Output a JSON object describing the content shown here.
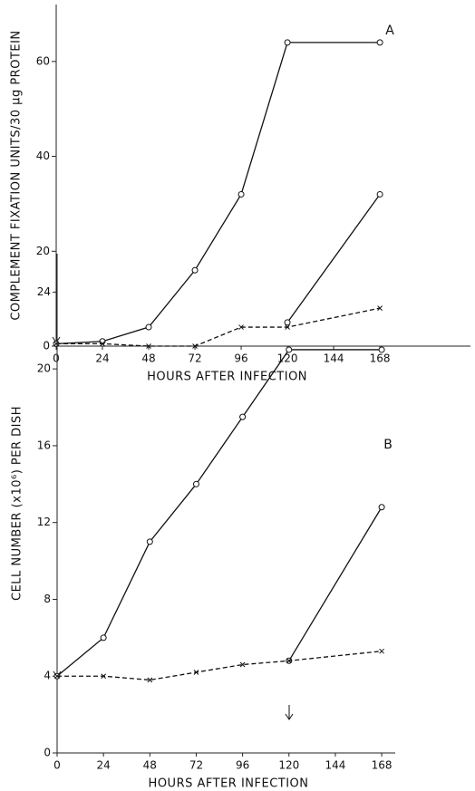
{
  "chart_data": [
    {
      "type": "line",
      "title": "A",
      "xlabel": "HOURS AFTER INFECTION",
      "ylabel": "COMPLEMENT FIXATION UNITS/30 μg PROTEIN",
      "x": [
        0,
        24,
        48,
        72,
        96,
        120,
        168
      ],
      "series": [
        {
          "color": "#111111",
          "marker": "o",
          "linestyle": "solid",
          "values": [
            0.5,
            1,
            4,
            16,
            32,
            64,
            64
          ]
        },
        {
          "color": "#111111",
          "marker": "o",
          "linestyle": "solid",
          "values": [
            null,
            null,
            null,
            null,
            null,
            5,
            32
          ]
        },
        {
          "color": "#111111",
          "marker": "x",
          "linestyle": "dashed",
          "values": [
            0.5,
            0.5,
            0,
            0,
            4,
            4,
            8
          ]
        }
      ],
      "xlim": [
        0,
        215
      ],
      "xticks": [
        0,
        24,
        48,
        72,
        96,
        120,
        144,
        168
      ],
      "ylim": [
        0,
        72
      ],
      "yticks": [
        0,
        20,
        40,
        60
      ]
    },
    {
      "type": "line",
      "title": "B",
      "xlabel": "HOURS AFTER INFECTION",
      "ylabel": "CELL NUMBER (x10⁶) PER DISH",
      "x": [
        0,
        24,
        48,
        72,
        96,
        120,
        168
      ],
      "series": [
        {
          "color": "#111111",
          "marker": "o",
          "linestyle": "solid",
          "values": [
            4,
            6,
            11,
            14,
            17.5,
            21,
            21
          ]
        },
        {
          "color": "#111111",
          "marker": "o",
          "linestyle": "solid",
          "values": [
            null,
            null,
            null,
            null,
            null,
            4.8,
            12.8
          ]
        },
        {
          "color": "#111111",
          "marker": "x",
          "linestyle": "dashed",
          "values": [
            4,
            4,
            3.8,
            4.2,
            4.6,
            4.8,
            5.3
          ]
        }
      ],
      "xlim": [
        0,
        175
      ],
      "xticks": [
        0,
        24,
        48,
        72,
        96,
        120,
        144,
        168
      ],
      "ylim": [
        0,
        26
      ],
      "yticks": [
        0,
        4,
        8,
        12,
        16,
        20,
        24
      ]
    }
  ]
}
